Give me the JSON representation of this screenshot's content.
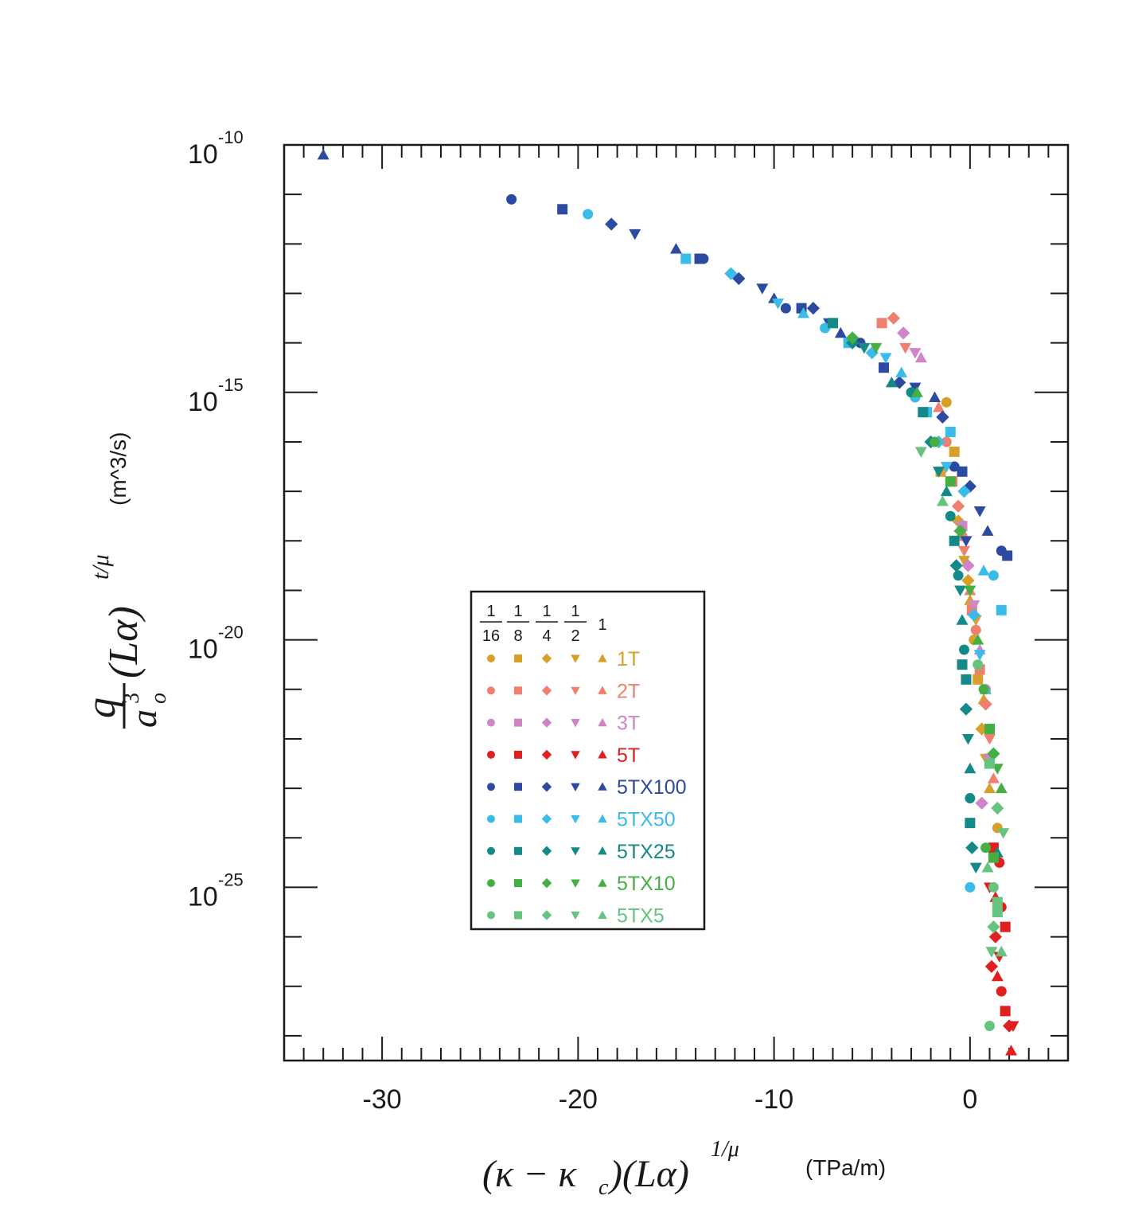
{
  "chart_data": {
    "type": "scatter",
    "x_scale": "linear",
    "y_scale": "log",
    "xlim": [
      -35,
      5
    ],
    "ylim_log10": [
      -28.5,
      -10
    ],
    "x_ticks": [
      {
        "value": -30,
        "label": "-30"
      },
      {
        "value": -20,
        "label": "-20"
      },
      {
        "value": -10,
        "label": "-10"
      },
      {
        "value": 0,
        "label": "0"
      }
    ],
    "y_ticks": [
      {
        "log10": -10,
        "base": "10",
        "exp": "-10"
      },
      {
        "log10": -15,
        "base": "10",
        "exp": "-15"
      },
      {
        "log10": -20,
        "base": "10",
        "exp": "-20"
      },
      {
        "log10": -25,
        "base": "10",
        "exp": "-25"
      }
    ],
    "xlabel": {
      "part1": "(κ − κ",
      "sub": "c",
      "part2": ")(Lα)",
      "sup": "1/μ",
      "unit": "(TPa/m)"
    },
    "ylabel": {
      "num": "q",
      "den_base": "a",
      "den_sup": "3",
      "den_sub": "o",
      "rest": "(Lα)",
      "sup": "t/μ",
      "unit": "(m^3/s)"
    },
    "legend": {
      "fractions": [
        {
          "num": "1",
          "den": "16"
        },
        {
          "num": "1",
          "den": "8"
        },
        {
          "num": "1",
          "den": "4"
        },
        {
          "num": "1",
          "den": "2"
        }
      ],
      "last_header": "1",
      "marker_shapes": [
        "circle",
        "square",
        "diamond",
        "triangle-down",
        "triangle-up"
      ],
      "position": "center-left"
    },
    "series": [
      {
        "name": "1T",
        "color": "#d8a02b",
        "points": [
          [
            -1.2,
            -15.2
          ],
          [
            -0.8,
            -16.2
          ],
          [
            -0.6,
            -17.6
          ],
          [
            -0.3,
            -18.4
          ],
          [
            0,
            -19.2
          ],
          [
            0.2,
            -20
          ],
          [
            0.4,
            -20.8
          ],
          [
            0.6,
            -21.8
          ],
          [
            0.8,
            -22.4
          ],
          [
            1,
            -23
          ],
          [
            1.4,
            -23.8
          ],
          [
            -1.5,
            -16.6
          ],
          [
            -0.1,
            -18.8
          ],
          [
            0.3,
            -19.6
          ],
          [
            0.7,
            -21.2
          ]
        ]
      },
      {
        "name": "2T",
        "color": "#ef8070",
        "points": [
          [
            -4.5,
            -13.6
          ],
          [
            -3.9,
            -13.5
          ],
          [
            -3.3,
            -14.1
          ],
          [
            -1.6,
            -15.3
          ],
          [
            -1.2,
            -16
          ],
          [
            -0.9,
            -16.8
          ],
          [
            -0.6,
            -17.3
          ],
          [
            -0.3,
            -18.2
          ],
          [
            0,
            -19
          ],
          [
            0.3,
            -19.8
          ],
          [
            0.5,
            -20.6
          ],
          [
            0.8,
            -21.3
          ],
          [
            1,
            -22
          ],
          [
            1.2,
            -22.8
          ],
          [
            -0.4,
            -17.9
          ],
          [
            0.1,
            -19.4
          ]
        ]
      },
      {
        "name": "3T",
        "color": "#cf85c8",
        "points": [
          [
            -3.4,
            -13.8
          ],
          [
            -2.8,
            -14.2
          ],
          [
            -2.5,
            -14.3
          ],
          [
            -0.8,
            -16.5
          ],
          [
            -0.4,
            -17.7
          ],
          [
            -0.1,
            -18.5
          ],
          [
            0.2,
            -19.3
          ],
          [
            0.5,
            -20.2
          ],
          [
            0.8,
            -21
          ],
          [
            1,
            -22.4
          ],
          [
            0.6,
            -23.3
          ],
          [
            -0.2,
            -18
          ]
        ]
      },
      {
        "name": "5T",
        "color": "#e0201e",
        "points": [
          [
            1,
            -25
          ],
          [
            1.3,
            -25.2
          ],
          [
            1.6,
            -25.4
          ],
          [
            1.8,
            -25.8
          ],
          [
            1.3,
            -26
          ],
          [
            1.5,
            -26.4
          ],
          [
            1.4,
            -26.8
          ],
          [
            1.6,
            -27.1
          ],
          [
            1.8,
            -27.5
          ],
          [
            2,
            -27.8
          ],
          [
            2.2,
            -27.8
          ],
          [
            2.1,
            -28.3
          ],
          [
            1.5,
            -24.5
          ],
          [
            1.2,
            -24.2
          ],
          [
            1.1,
            -26.6
          ]
        ]
      },
      {
        "name": "5TX100",
        "color": "#2b4aa0",
        "points": [
          [
            -33,
            -10.2
          ],
          [
            -23.4,
            -11.1
          ],
          [
            -20.8,
            -11.3
          ],
          [
            -18.3,
            -11.6
          ],
          [
            -17.1,
            -11.8
          ],
          [
            -15,
            -12.1
          ],
          [
            -13.6,
            -12.3
          ],
          [
            -13.8,
            -12.3
          ],
          [
            -11.8,
            -12.7
          ],
          [
            -10.6,
            -12.9
          ],
          [
            -10,
            -13.1
          ],
          [
            -9.4,
            -13.3
          ],
          [
            -8.6,
            -13.3
          ],
          [
            -8,
            -13.3
          ],
          [
            -7.2,
            -13.6
          ],
          [
            -6.6,
            -13.8
          ],
          [
            -5.6,
            -14
          ],
          [
            -4.4,
            -14.5
          ],
          [
            -3.6,
            -14.8
          ],
          [
            -2.8,
            -14.9
          ],
          [
            -1.8,
            -15.1
          ],
          [
            -0.8,
            -16.5
          ],
          [
            -0.4,
            -16.6
          ],
          [
            0,
            -16.9
          ],
          [
            0.5,
            -17.4
          ],
          [
            0.9,
            -17.8
          ],
          [
            1.6,
            -18.2
          ],
          [
            1.9,
            -18.3
          ],
          [
            -1.4,
            -15.5
          ],
          [
            -0.2,
            -18
          ]
        ]
      },
      {
        "name": "5TX50",
        "color": "#3bbbe8",
        "points": [
          [
            -19.5,
            -11.4
          ],
          [
            -14.5,
            -12.3
          ],
          [
            -12.2,
            -12.6
          ],
          [
            -9.8,
            -13.2
          ],
          [
            -8.5,
            -13.4
          ],
          [
            -7.4,
            -13.7
          ],
          [
            -6.2,
            -14
          ],
          [
            -5,
            -14.2
          ],
          [
            -4.3,
            -14.3
          ],
          [
            -3.5,
            -14.6
          ],
          [
            -2.8,
            -15.1
          ],
          [
            -2.2,
            -15.4
          ],
          [
            -1.6,
            -16
          ],
          [
            -1.2,
            -16.5
          ],
          [
            0.7,
            -18.6
          ],
          [
            1.2,
            -18.7
          ],
          [
            1.6,
            -19.4
          ],
          [
            0.2,
            -19.5
          ],
          [
            0.5,
            -20.3
          ],
          [
            0.8,
            -21
          ],
          [
            0,
            -25
          ],
          [
            -1,
            -15.8
          ],
          [
            -0.3,
            -17
          ]
        ]
      },
      {
        "name": "5TX25",
        "color": "#138a88",
        "points": [
          [
            -7,
            -13.6
          ],
          [
            -6,
            -14
          ],
          [
            -5.4,
            -14.1
          ],
          [
            -4,
            -14.8
          ],
          [
            -3,
            -15
          ],
          [
            -2.4,
            -15.4
          ],
          [
            -2,
            -16
          ],
          [
            -1.6,
            -16.6
          ],
          [
            -1.2,
            -17
          ],
          [
            -1,
            -17.5
          ],
          [
            -0.8,
            -18
          ],
          [
            -0.7,
            -18.5
          ],
          [
            -0.5,
            -19
          ],
          [
            -0.4,
            -19.6
          ],
          [
            -0.3,
            -20.2
          ],
          [
            -0.2,
            -20.8
          ],
          [
            -0.2,
            -21.4
          ],
          [
            -0.1,
            -22
          ],
          [
            0,
            -22.6
          ],
          [
            0,
            -23.2
          ],
          [
            0,
            -23.7
          ],
          [
            0.1,
            -24.2
          ],
          [
            0.3,
            -24.6
          ],
          [
            1.4,
            -24.3
          ],
          [
            -0.6,
            -18.7
          ],
          [
            -0.4,
            -20.5
          ]
        ]
      },
      {
        "name": "5TX10",
        "color": "#44b043",
        "points": [
          [
            -6,
            -13.9
          ],
          [
            -4.8,
            -14.1
          ],
          [
            -2.7,
            -15
          ],
          [
            -1.8,
            -16
          ],
          [
            -1,
            -16.8
          ],
          [
            -0.5,
            -17.8
          ],
          [
            0,
            -19
          ],
          [
            0.4,
            -20
          ],
          [
            0.7,
            -21
          ],
          [
            1,
            -21.8
          ],
          [
            1.2,
            -22.3
          ],
          [
            1.4,
            -22.6
          ],
          [
            1.6,
            -23
          ],
          [
            0.8,
            -24.2
          ],
          [
            1.2,
            -24.4
          ]
        ]
      },
      {
        "name": "5TX5",
        "color": "#67c47f",
        "points": [
          [
            -2.5,
            -16.2
          ],
          [
            -1.4,
            -17.2
          ],
          [
            0.4,
            -20.5
          ],
          [
            1,
            -22.5
          ],
          [
            1.4,
            -23.4
          ],
          [
            1.7,
            -23.9
          ],
          [
            0.9,
            -24.6
          ],
          [
            1.2,
            -25
          ],
          [
            1.4,
            -25.5
          ],
          [
            1.2,
            -25.8
          ],
          [
            1.1,
            -26.3
          ],
          [
            1.6,
            -26.3
          ],
          [
            1.0,
            -27.8
          ],
          [
            1.4,
            -25.3
          ]
        ]
      }
    ]
  }
}
